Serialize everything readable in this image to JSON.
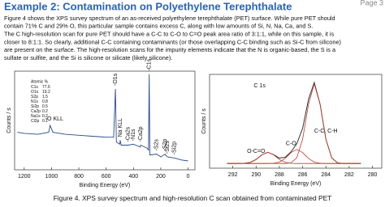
{
  "header": {
    "title": "Example 2:  Contamination on Polyethylene Terephthalate",
    "page": "Page 3"
  },
  "paragraph": [
    "Figure 4 shows the XPS survey spectrum of an as-received polyethylene terephthalate (PET) surface.  While pure PET should",
    "contain 71% C and 29% O, this particular sample contains excess C, along with low amounts of Si, N, Na, Ca, and S.",
    "The C high-resolution scan for pure PET should have a C-C to C-O to C=O peak area ratio of 3:1:1, while on this sample, it is",
    "closer to 8:1:1.  So clearly, additional C-C containing contaminants (or those overlapping C-C binding such as Si-C from silicone)",
    "are present on the surface.  The high-resolution scans for the impurity elements indicate that the N is organic-based, the S is a",
    "sulfate or sulfite, and the Si is silicone or silicate (likely silicone)."
  ],
  "caption": "Figure 4.  XPS survey spectrum and high-resolution C scan obtained from contaminated PET",
  "chart_data": [
    {
      "type": "line",
      "x_label": "Binding Energy (eV)",
      "y_label": "Counts / s",
      "xlim": [
        1270,
        -50
      ],
      "xticks": [
        1200,
        1000,
        800,
        600,
        400,
        200,
        0
      ],
      "ylim": [
        0,
        100
      ],
      "series": [
        {
          "color": "#2a4a8a",
          "x": [
            1250,
            1200,
            1100,
            1020,
            1010,
            990,
            900,
            800,
            700,
            600,
            545,
            532,
            525,
            500,
            497,
            490,
            440,
            400,
            350,
            347,
            300,
            290,
            285,
            280,
            230,
            200,
            168,
            165,
            150,
            100,
            50,
            0
          ],
          "values": [
            38,
            37,
            36,
            38,
            45,
            38,
            36,
            35,
            34,
            33,
            33,
            82,
            28,
            26,
            30,
            25,
            25,
            26,
            23,
            25,
            22,
            20,
            97,
            15,
            16,
            13,
            16,
            15,
            13,
            12,
            10,
            9
          ]
        }
      ],
      "annotation_table": {
        "title": "Atomic %",
        "rows": [
          [
            "C1s",
            77.6
          ],
          [
            "O1s",
            19.2
          ],
          [
            "S2p",
            1.5
          ],
          [
            "N1s",
            0.8
          ],
          [
            "Si2p",
            0.5
          ],
          [
            "Ca2p",
            0.2
          ],
          [
            "Na1s",
            0.2
          ],
          [
            "Cl2p",
            0.1
          ]
        ]
      },
      "peak_labels": [
        {
          "text": "-O KLL",
          "x": 1010
        },
        {
          "text": "-O1s",
          "x": 532
        },
        {
          "text": "Na KLL",
          "x": 497
        },
        {
          "text": "-Ca2s",
          "x": 440
        },
        {
          "text": "-N1s",
          "x": 400
        },
        {
          "text": "-Ca2p",
          "x": 347
        },
        {
          "text": "-C1s",
          "x": 285
        },
        {
          "text": "-S2s",
          "x": 230
        },
        {
          "text": "-S2p",
          "x": 168
        },
        {
          "text": "-Si2s",
          "x": 150
        },
        {
          "text": "-Si2p",
          "x": 100
        }
      ]
    },
    {
      "type": "line",
      "title": "C 1s",
      "x_label": "Binding Energy (eV)",
      "y_label": "Counts / s",
      "xlim": [
        294,
        279.2
      ],
      "xticks": [
        292,
        290,
        288,
        286,
        284,
        282,
        280
      ],
      "ylim": [
        0,
        100
      ],
      "x": [
        292.5,
        292,
        291.5,
        291,
        290.5,
        290,
        289.5,
        289,
        288.5,
        288,
        287.5,
        287,
        286.5,
        286,
        285.5,
        285,
        284.5,
        284,
        283.5,
        283,
        282.5,
        282,
        281.5,
        281
      ],
      "series": [
        {
          "color": "#222222",
          "values": [
            5,
            5,
            5,
            5.2,
            6.2,
            9.3,
            14.3,
            17,
            14.6,
            10.8,
            11.6,
            17.5,
            26,
            42.6,
            73.4,
            91.5,
            68.3,
            31,
            11,
            5.7,
            5,
            5,
            5,
            5
          ]
        },
        {
          "color": "#c0392b",
          "values": [
            5,
            5,
            5,
            5,
            5,
            5,
            5,
            5,
            5,
            5,
            5,
            5.7,
            11,
            31,
            68,
            90,
            68,
            31,
            11,
            5.7,
            5,
            5,
            5,
            5
          ]
        },
        {
          "color": "#c0392b",
          "values": [
            5,
            5,
            5,
            5,
            5,
            5,
            5,
            5,
            5.3,
            6.5,
            10.4,
            16.6,
            20,
            16.6,
            10.4,
            6.5,
            5.3,
            5,
            5,
            5,
            5,
            5,
            5,
            5
          ]
        },
        {
          "color": "#c0392b",
          "values": [
            5,
            5,
            5,
            5.2,
            6.2,
            9.3,
            14.3,
            17,
            14.3,
            9.3,
            6.2,
            5.2,
            5,
            5,
            5,
            5,
            5,
            5,
            5,
            5,
            5,
            5,
            5,
            5
          ]
        }
      ],
      "peak_labels": [
        {
          "text": "C-C, C-H",
          "x": 284
        },
        {
          "text": "C-O",
          "x": 287
        },
        {
          "text": "O-C=O",
          "x": 290
        }
      ]
    }
  ]
}
